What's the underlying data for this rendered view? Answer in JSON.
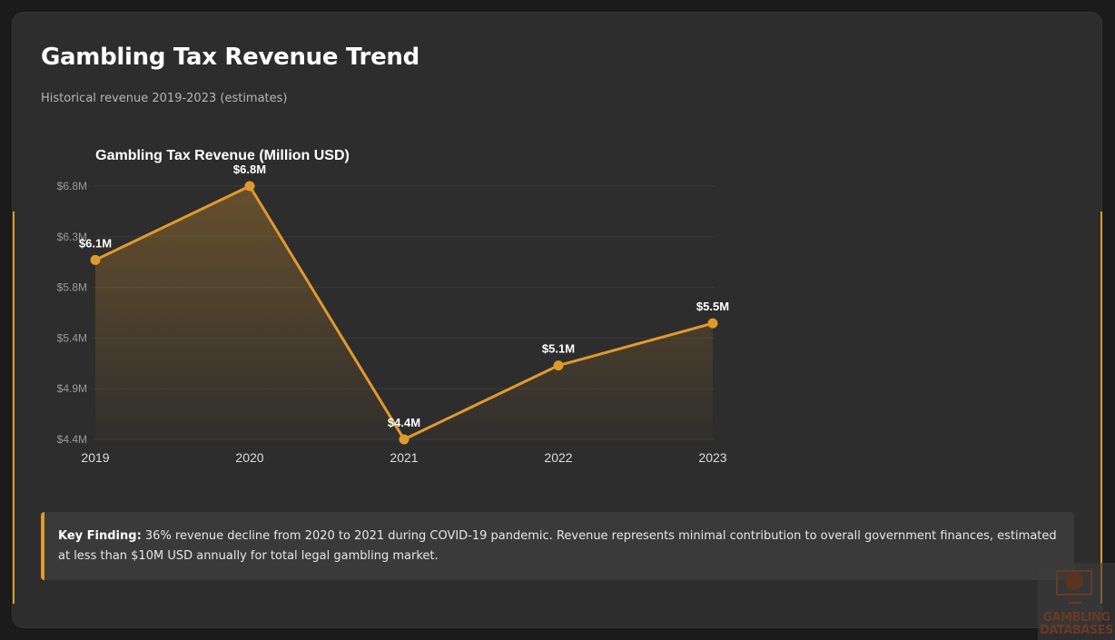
{
  "header": {
    "title": "Gambling Tax Revenue Trend",
    "subtitle": "Historical revenue 2019-2023 (estimates)"
  },
  "colors": {
    "accent": "#e09a2c",
    "background": "#1b1b1b",
    "card": "#2d2d2d",
    "finding_bg": "#3a3a3a"
  },
  "chart_data": {
    "type": "line",
    "title": "Gambling Tax Revenue (Million USD)",
    "xlabel": "",
    "ylabel": "",
    "categories": [
      "2019",
      "2020",
      "2021",
      "2022",
      "2023"
    ],
    "series": [
      {
        "name": "Gambling Tax Revenue",
        "values": [
          6.1,
          6.8,
          4.4,
          5.1,
          5.5
        ],
        "labels": [
          "$6.1M",
          "$6.8M",
          "$4.4M",
          "$5.1M",
          "$5.5M"
        ],
        "color": "#e09a2c",
        "fill": "gradient"
      }
    ],
    "ylim": [
      4.4,
      6.8
    ],
    "yticks": [
      4.4,
      4.88,
      5.36,
      5.84,
      6.32,
      6.8
    ],
    "ytick_labels": [
      "$4.4M",
      "$4.9M",
      "$5.4M",
      "$5.8M",
      "$6.3M",
      "$6.8M"
    ],
    "grid": true,
    "legend": "none"
  },
  "finding": {
    "label": "Key Finding:",
    "text": " 36% revenue decline from 2020 to 2021 during COVID-19 pandemic. Revenue represents minimal contribution to overall government finances, estimated at less than $10M USD annually for total legal gambling market."
  },
  "watermark": {
    "icon": "monitor-poker-chip-icon",
    "line1": "GAMBLING",
    "line2": "DATABASES"
  }
}
